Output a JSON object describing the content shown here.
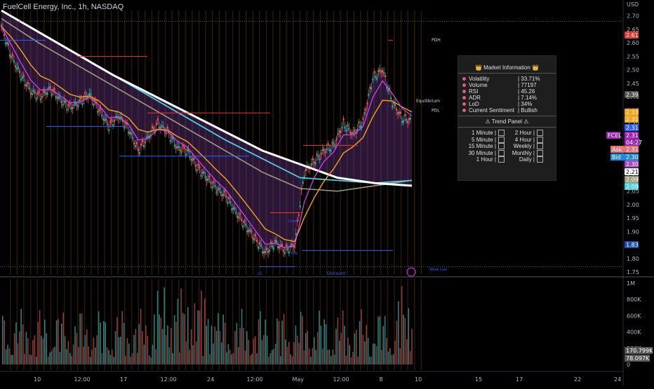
{
  "header": {
    "title": "FuelCell Energy, Inc., 1h, NASDAQ",
    "currency": "USD"
  },
  "colors": {
    "bg": "#000000",
    "up": "#26a69a",
    "down": "#ef5350",
    "purple": "#7b3fa0",
    "ema_fast": "#e040fb",
    "ema_orange": "#f7a21b",
    "sma_white": "#ffffff",
    "sma_cyan": "#4dd0e1",
    "sma_olive": "#9e9d77",
    "red_line": "#e53935",
    "blue_line": "#2962ff"
  },
  "chart_data": {
    "type": "line",
    "title": "FuelCell Energy, Inc., 1h, NASDAQ",
    "ylim": [
      1.74,
      2.72
    ],
    "y_ticks": [
      "2.70",
      "2.65",
      "2.60",
      "2.55",
      "2.50",
      "2.45",
      "2.40",
      "2.35",
      "2.30",
      "2.25",
      "2.20",
      "2.15",
      "2.10",
      "2.05",
      "2.00",
      "1.95",
      "1.90",
      "1.85",
      "1.80",
      "1.75"
    ],
    "x_ticks": [
      "10",
      "12:00",
      "17",
      "12:00",
      "24",
      "12:00",
      "May",
      "12:00",
      "8",
      "10",
      "15",
      "17",
      "22",
      "24"
    ],
    "series": [
      {
        "name": "price",
        "values": [
          2.66,
          2.55,
          2.48,
          2.42,
          2.4,
          2.43,
          2.39,
          2.36,
          2.38,
          2.41,
          2.35,
          2.29,
          2.33,
          2.28,
          2.2,
          2.25,
          2.3,
          2.27,
          2.21,
          2.2,
          2.14,
          2.1,
          2.06,
          2.03,
          1.97,
          1.92,
          1.87,
          1.82,
          1.86,
          1.83,
          1.85,
          2.12,
          2.16,
          2.2,
          2.22,
          2.3,
          2.26,
          2.31,
          2.47,
          2.5,
          2.38,
          2.32,
          2.31
        ]
      },
      {
        "name": "white_ma",
        "values": [
          2.72,
          2.64,
          2.56,
          2.48,
          2.41,
          2.34,
          2.27,
          2.2,
          2.15,
          2.1,
          2.08,
          2.07
        ]
      },
      {
        "name": "cyan_ma",
        "values": [
          2.72,
          2.64,
          2.56,
          2.48,
          2.4,
          2.32,
          2.24,
          2.17,
          2.1,
          2.09,
          2.08,
          2.09
        ]
      },
      {
        "name": "olive_ma",
        "values": [
          2.69,
          2.6,
          2.52,
          2.44,
          2.36,
          2.28,
          2.2,
          2.12,
          2.06,
          2.05,
          2.07,
          2.09
        ]
      }
    ],
    "price_labels": [
      {
        "text": "2.61",
        "color": "#e53935"
      },
      {
        "text": "2.39",
        "color": "#555555"
      },
      {
        "text": "2.33",
        "color": "#f7a21b"
      },
      {
        "text": "2.31",
        "color": "#f7a21b"
      },
      {
        "text": "2.31",
        "color": "#2962ff"
      },
      {
        "text": "FCEL",
        "color": "#9c27b0"
      },
      {
        "text": "2.31",
        "color": "#9c27b0"
      },
      {
        "text": "04:27",
        "color": "#9c27b0"
      },
      {
        "text": "Ask",
        "color": "#e57373"
      },
      {
        "text": "2.31",
        "color": "#e57373"
      },
      {
        "text": "Bid",
        "color": "#1e88e5"
      },
      {
        "text": "2.30",
        "color": "#1e88e5"
      },
      {
        "text": "2.30",
        "color": "#ab47bc"
      },
      {
        "text": "2.21",
        "color": "#ffffff"
      },
      {
        "text": "2.09",
        "color": "#9e9d77"
      },
      {
        "text": "2.09",
        "color": "#4dd0e1"
      },
      {
        "text": "1.83",
        "color": "#1e4fb0"
      }
    ],
    "annotations": [
      "PDH",
      "Equilibrium",
      "PDL",
      "LL",
      "EQL",
      "Discount",
      "Weak Low",
      "Choch"
    ],
    "volume": {
      "y_ticks": [
        "1M",
        "800K",
        "600K",
        "400K",
        "200K",
        "0"
      ],
      "labels": [
        "170.799K",
        "78.097K"
      ]
    }
  },
  "panel": {
    "title": "👑 Market Information 👑",
    "rows": [
      {
        "k": "Volatility",
        "v": "| 33.71%"
      },
      {
        "k": "Volume",
        "v": "| 77197"
      },
      {
        "k": "RSI",
        "v": "| 45.26"
      },
      {
        "k": "ADR",
        "v": "| 7.14%"
      },
      {
        "k": "LoD",
        "v": "| 34%"
      },
      {
        "k": "Current Sentiment",
        "v": "| Bullish"
      }
    ],
    "trend_title": "⚠ Trend Panel ⚠",
    "trend_rows": [
      {
        "l": "1 Minute |",
        "r": "2 Hour |"
      },
      {
        "l": "5 Minute |",
        "r": "4 Hour |"
      },
      {
        "l": "15 Minute |",
        "r": "Weekly |"
      },
      {
        "l": "30 Minute |",
        "r": "Monthly |"
      },
      {
        "l": "1 Hour |",
        "r": "Daily |"
      }
    ]
  }
}
